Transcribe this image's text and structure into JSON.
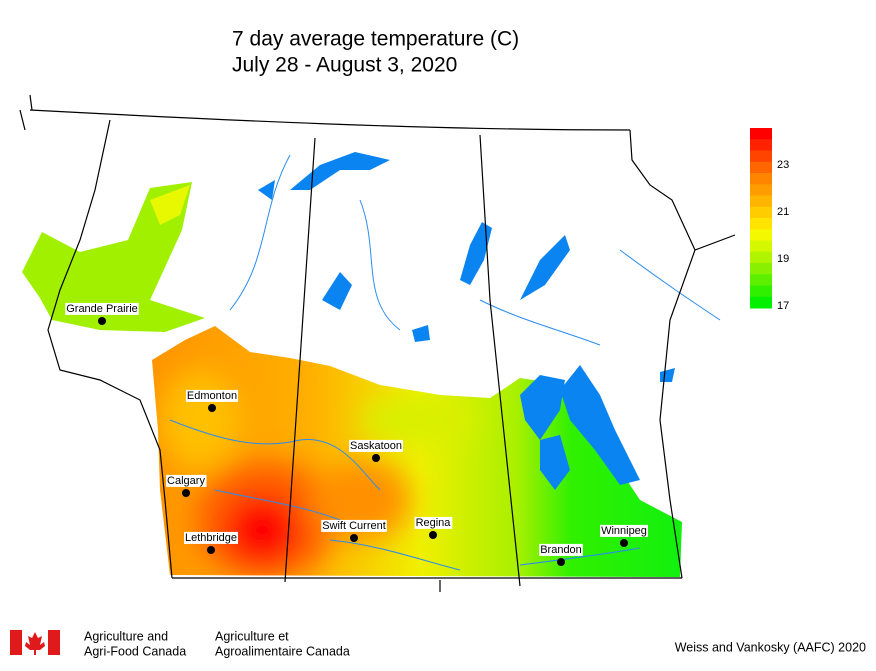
{
  "title": [
    "7 day average temperature (C)",
    "July 28 - August 3, 2020"
  ],
  "legend": {
    "colors": [
      "#ff0000",
      "#ff2200",
      "#ff4400",
      "#ff6600",
      "#ff8400",
      "#ff9c00",
      "#ffb400",
      "#ffcc00",
      "#ffe400",
      "#f4f800",
      "#d4f800",
      "#b0f400",
      "#88f000",
      "#5cf000",
      "#30f000",
      "#00f000"
    ],
    "ticks": [
      "23",
      "21",
      "19",
      "17"
    ]
  },
  "cities": [
    "Grande Prairie",
    "Edmonton",
    "Calgary",
    "Lethbridge",
    "Saskatoon",
    "Swift Current",
    "Regina",
    "Brandon",
    "Winnipeg"
  ],
  "footer": {
    "agency_en": [
      "Agriculture and",
      "Agri-Food Canada"
    ],
    "agency_fr": [
      "Agriculture et",
      "Agroalimentaire Canada"
    ],
    "credit": "Weiss and Vankosky (AAFC) 2020"
  }
}
